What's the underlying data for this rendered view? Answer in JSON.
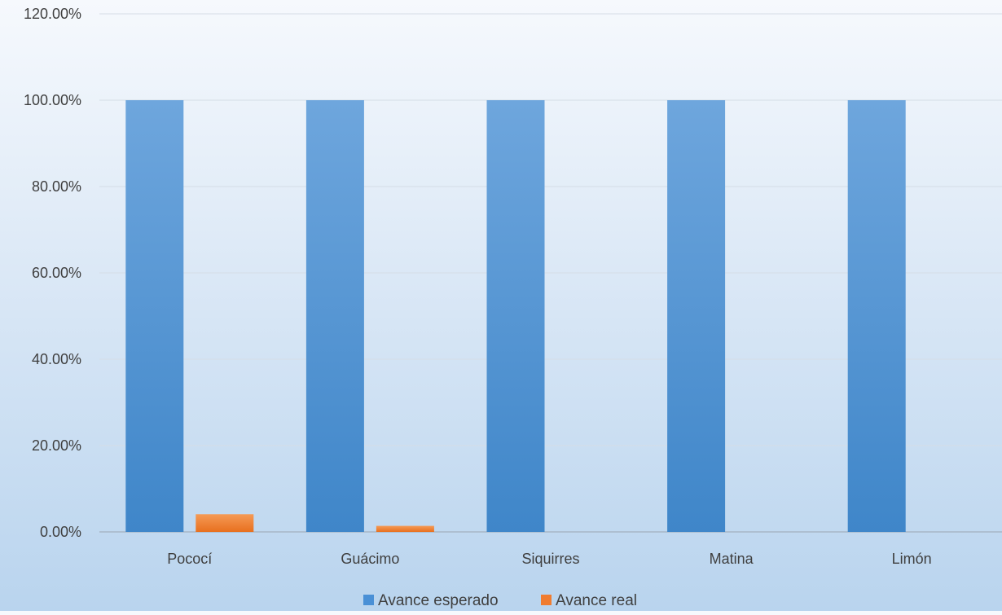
{
  "chart_data": {
    "type": "bar",
    "title": "",
    "xlabel": "",
    "ylabel": "",
    "categories": [
      "Pococí",
      "Guácimo",
      "Siquirres",
      "Matina",
      "Limón"
    ],
    "series": [
      {
        "name": "Avance esperado",
        "values": [
          100,
          100,
          100,
          100,
          100
        ]
      },
      {
        "name": "Avance real",
        "values": [
          4.1,
          1.4,
          0,
          0,
          0
        ]
      }
    ],
    "ylim": [
      0,
      120
    ],
    "yticks": [
      0,
      20,
      40,
      60,
      80,
      100,
      120
    ],
    "ytick_labels": [
      "0.00%",
      "20.00%",
      "40.00%",
      "60.00%",
      "80.00%",
      "100.00%",
      "120.00%"
    ],
    "grid": true,
    "legend_position": "bottom",
    "colors": {
      "series": [
        "#4a90d6",
        "#f07c30"
      ],
      "grid": "#d5dde6",
      "axis": "#9aa6b2"
    }
  }
}
